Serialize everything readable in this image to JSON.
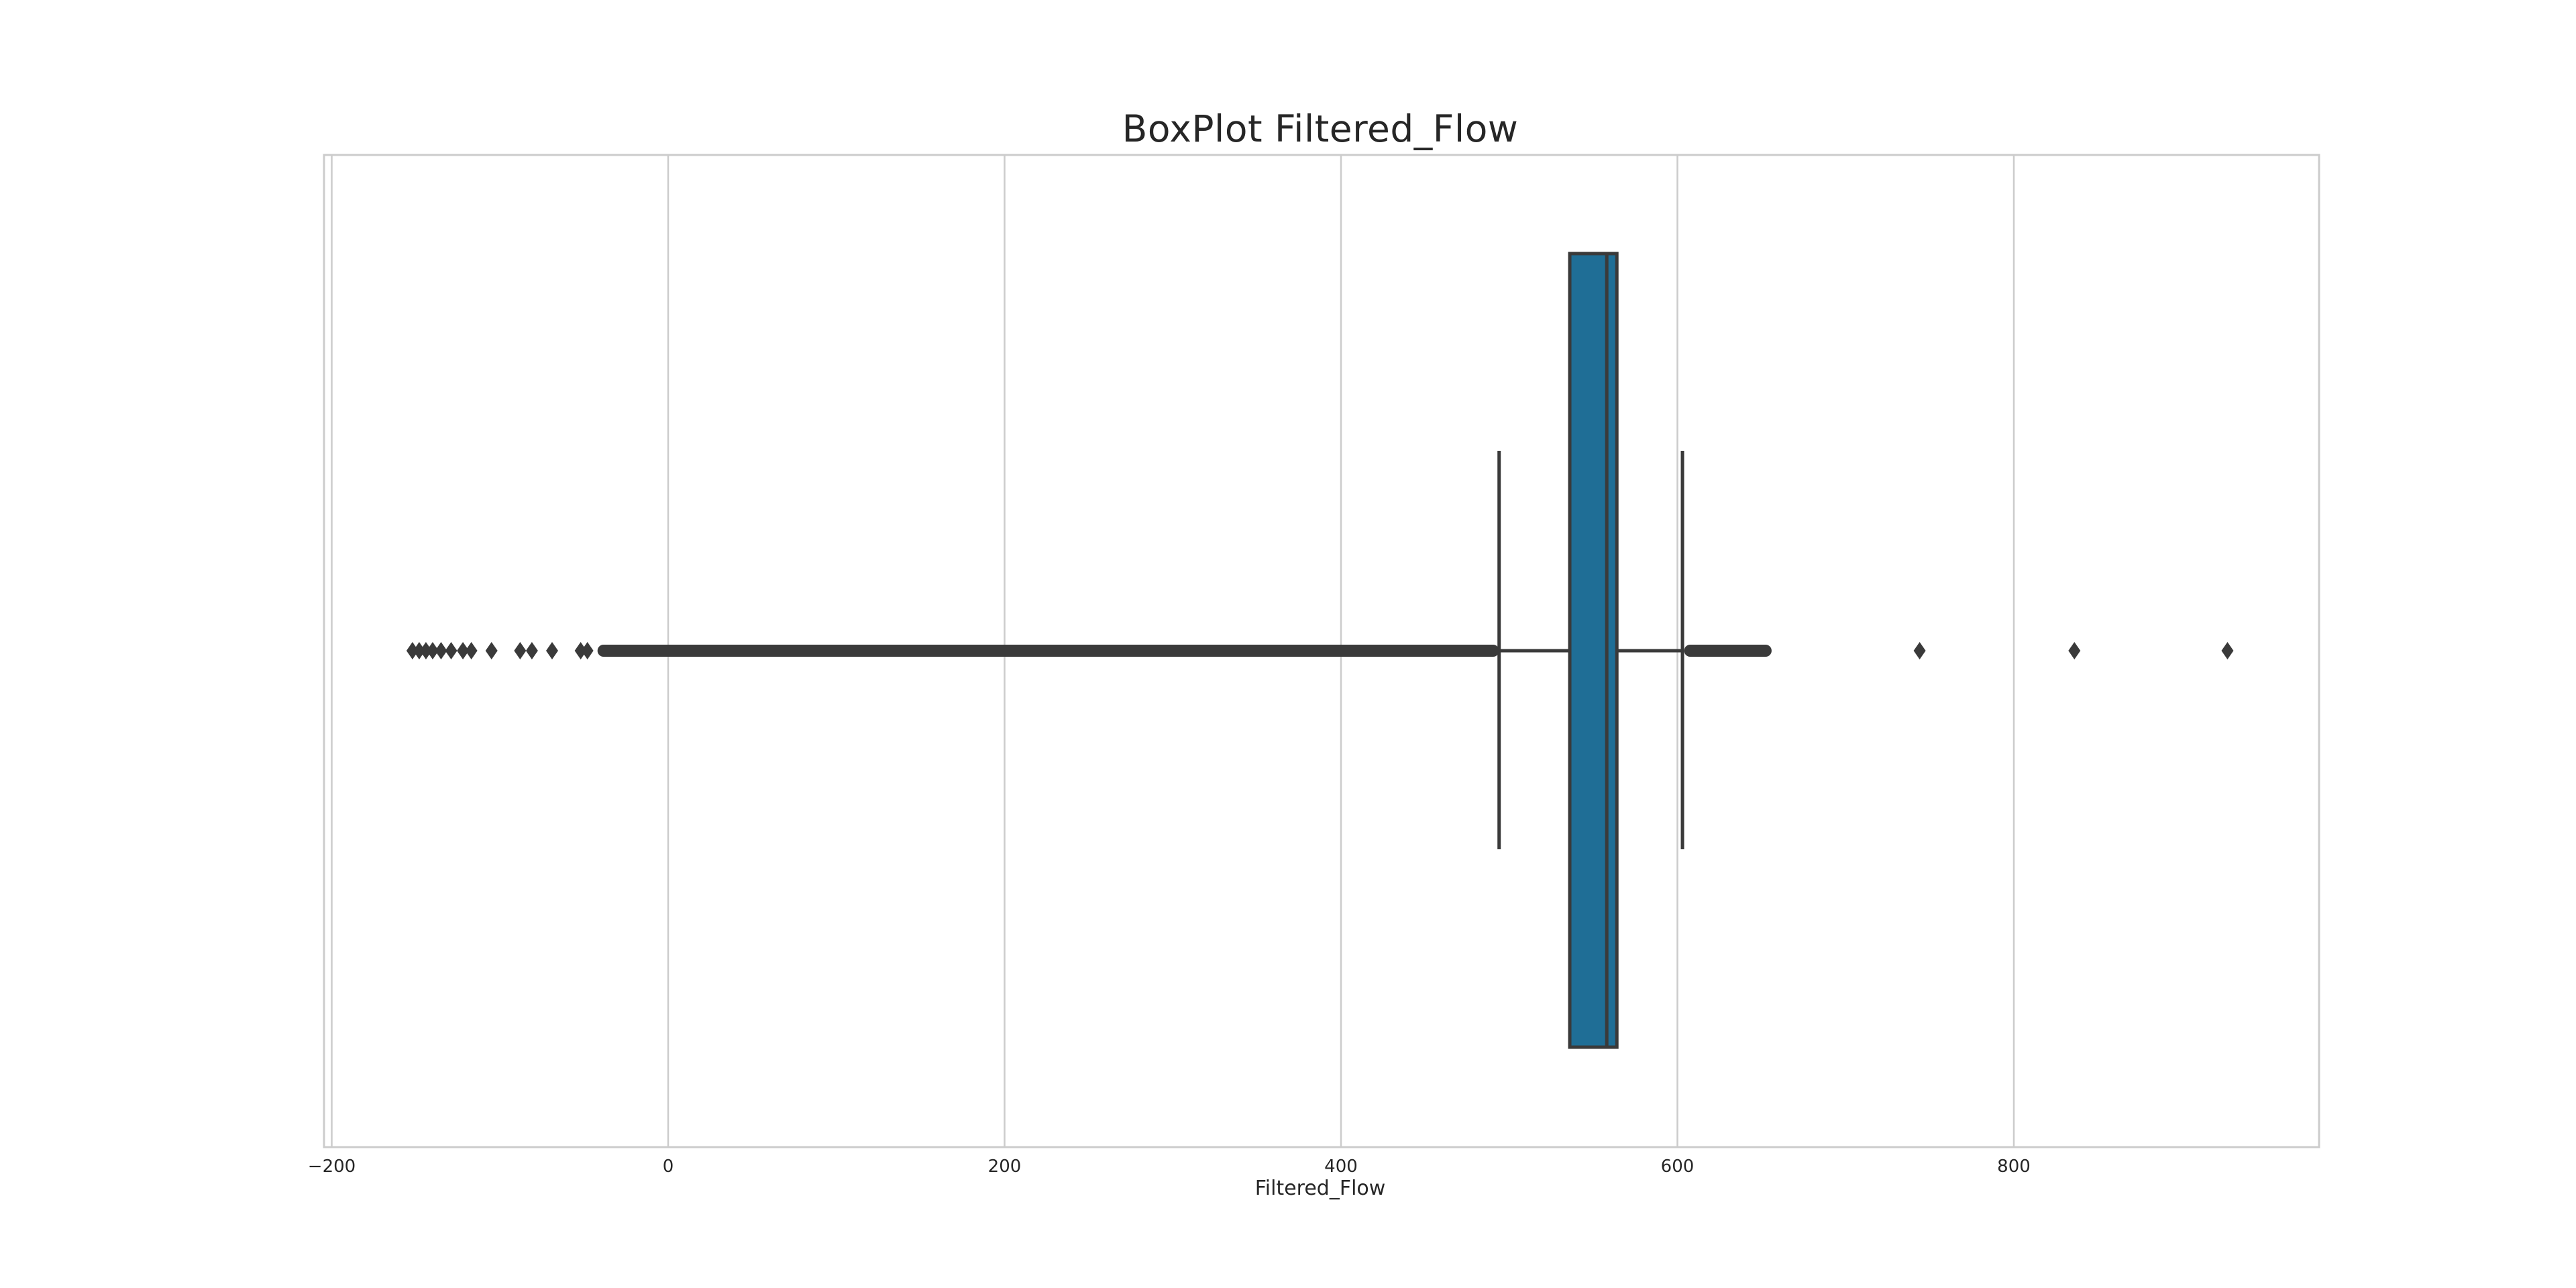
{
  "chart_data": {
    "type": "boxplot",
    "title": "BoxPlot Filtered_Flow",
    "xlabel": "Filtered_Flow",
    "ylabel": "",
    "orientation": "horizontal",
    "xlim": [
      -205,
      980
    ],
    "xticks": [
      -200,
      0,
      200,
      400,
      600,
      800
    ],
    "xtick_labels": [
      "−200",
      "0",
      "200",
      "400",
      "600",
      "800"
    ],
    "grid": "vertical",
    "box": {
      "whisker_low": 494,
      "q1": 536,
      "median": 558,
      "q3": 564,
      "whisker_high": 603,
      "color": "#1f6e96",
      "line_color": "#3a3a3a"
    },
    "outliers": {
      "low_isolated": [
        -152,
        -148,
        -144,
        -140,
        -135,
        -129,
        -122,
        -117,
        -105,
        -88,
        -81,
        -69,
        -52,
        -48
      ],
      "low_dense_range": [
        -42,
        494
      ],
      "high_dense_range": [
        604,
        656
      ],
      "high_isolated": [
        744,
        836,
        927
      ]
    }
  }
}
